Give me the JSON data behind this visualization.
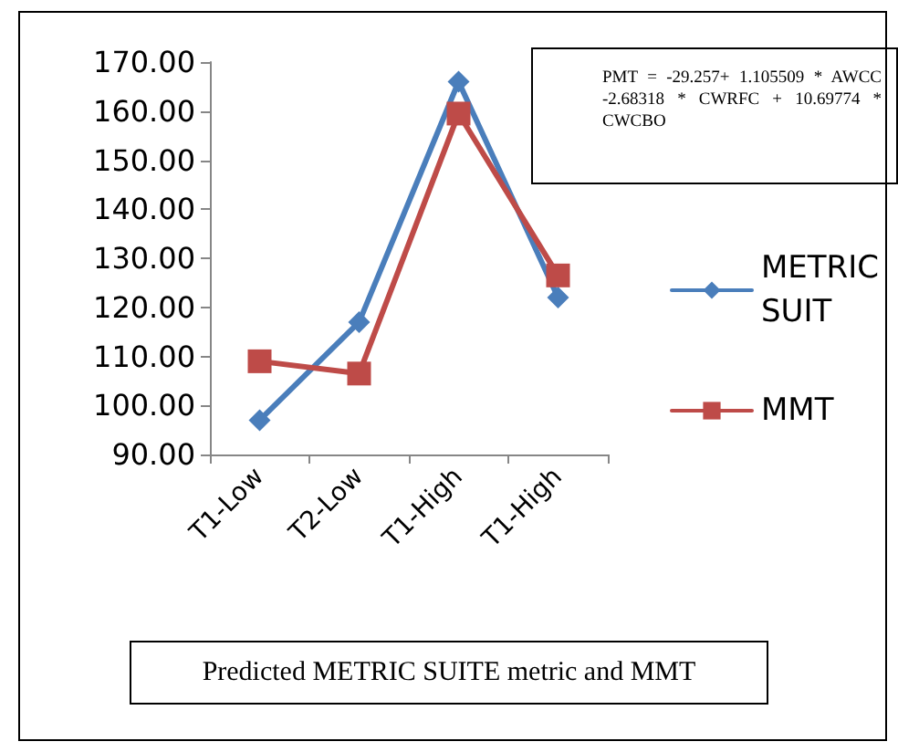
{
  "chart_data": {
    "type": "line",
    "title": "Predicted METRIC SUITE metric and MMT",
    "annotations": [
      "PMT = -29.257+ 1.105509 * AWCC  -2.68318  *  CWRFC  +  10.69774 * CWCBO"
    ],
    "categories": [
      "T1-Low",
      "T2-Low",
      "T1-High",
      "T1-High"
    ],
    "series": [
      {
        "name": "METRIC SUIT",
        "color": "#4a7ebb",
        "marker": "diamond",
        "values": [
          97,
          117,
          166,
          122
        ]
      },
      {
        "name": "MMT",
        "color": "#be4b48",
        "marker": "square",
        "values": [
          109,
          106.5,
          159.5,
          126.5
        ]
      }
    ],
    "ylim": [
      90,
      170
    ],
    "yticks": [
      {
        "value": 90,
        "label": "90.00"
      },
      {
        "value": 100,
        "label": "100.00"
      },
      {
        "value": 110,
        "label": "110.00"
      },
      {
        "value": 120,
        "label": "120.00"
      },
      {
        "value": 130,
        "label": "130.00"
      },
      {
        "value": 140,
        "label": "140.00"
      },
      {
        "value": 150,
        "label": "150.00"
      },
      {
        "value": 160,
        "label": "160.00"
      },
      {
        "value": 170,
        "label": "170.00"
      }
    ],
    "grid": false,
    "legend": "right",
    "line_style": "solid"
  }
}
